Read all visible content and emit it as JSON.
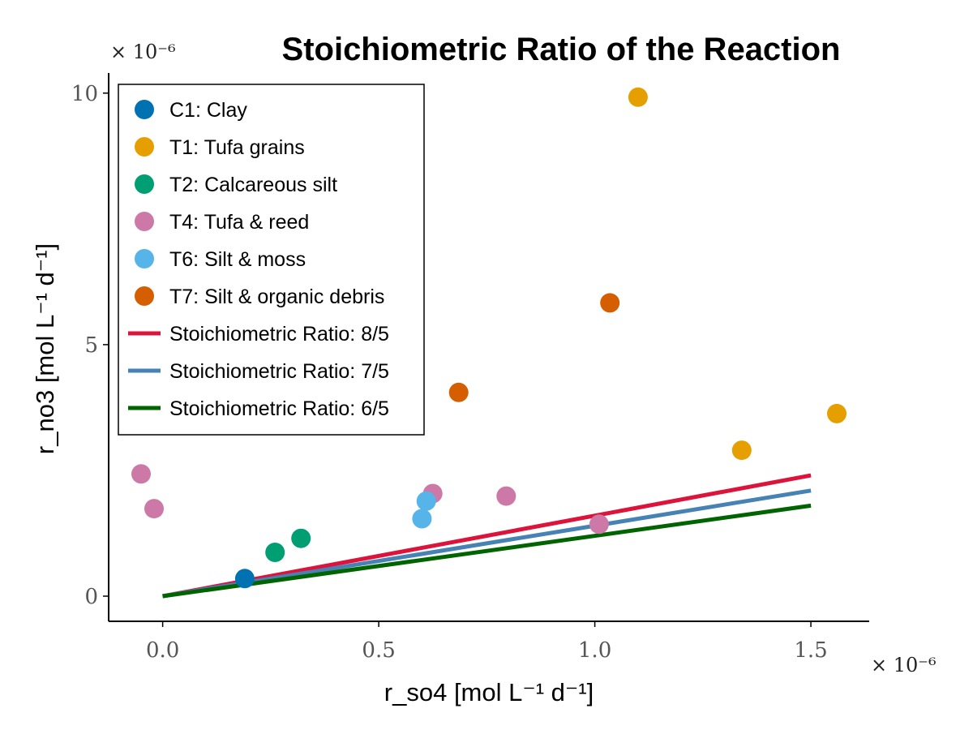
{
  "chart_data": {
    "type": "scatter",
    "title": "Stoichiometric Ratio of the Reaction",
    "xlabel": "r_so4 [mol L⁻¹ d⁻¹]",
    "ylabel": "r_no3 [mol L⁻¹ d⁻¹]",
    "x_scale_label": "× 10⁻⁶",
    "y_scale_label": "× 10⁻⁶",
    "xlim": [
      -0.125,
      1.635
    ],
    "ylim": [
      -0.5,
      10.4
    ],
    "x_ticks": [
      0.0,
      0.5,
      1.0,
      1.5
    ],
    "x_tick_labels": [
      "0.0",
      "0.5",
      "1.0",
      "1.5"
    ],
    "y_ticks": [
      0,
      5,
      10
    ],
    "y_tick_labels": [
      "0",
      "5",
      "10"
    ],
    "grid": false,
    "legend_position": "top-left",
    "series": [
      {
        "name": "C1: Clay",
        "kind": "scatter",
        "color": "#0072B2",
        "points": [
          [
            0.19,
            0.35
          ]
        ]
      },
      {
        "name": "T1: Tufa grains",
        "kind": "scatter",
        "color": "#E69F00",
        "points": [
          [
            1.1,
            9.92
          ],
          [
            1.34,
            2.9
          ],
          [
            1.56,
            3.63
          ]
        ]
      },
      {
        "name": "T2: Calcareous silt",
        "kind": "scatter",
        "color": "#009E73",
        "points": [
          [
            0.26,
            0.87
          ],
          [
            0.32,
            1.15
          ]
        ]
      },
      {
        "name": "T4: Tufa & reed",
        "kind": "scatter",
        "color": "#CC79A7",
        "points": [
          [
            -0.05,
            2.43
          ],
          [
            -0.02,
            1.74
          ],
          [
            0.625,
            2.04
          ],
          [
            0.795,
            1.99
          ],
          [
            1.01,
            1.43
          ]
        ]
      },
      {
        "name": "T6: Silt & moss",
        "kind": "scatter",
        "color": "#56B4E9",
        "points": [
          [
            0.6,
            1.54
          ],
          [
            0.61,
            1.89
          ]
        ]
      },
      {
        "name": "T7: Silt & organic debris",
        "kind": "scatter",
        "color": "#D55E00",
        "points": [
          [
            0.685,
            4.05
          ],
          [
            1.035,
            5.83
          ]
        ]
      },
      {
        "name": "Stoichiometric Ratio: 8/5",
        "kind": "line",
        "color": "#DC143C",
        "points": [
          [
            0.0,
            0.0
          ],
          [
            1.5,
            2.4
          ]
        ]
      },
      {
        "name": "Stoichiometric Ratio: 7/5",
        "kind": "line",
        "color": "#4682B4",
        "points": [
          [
            0.0,
            0.0
          ],
          [
            1.5,
            2.1
          ]
        ]
      },
      {
        "name": "Stoichiometric Ratio: 6/5",
        "kind": "line",
        "color": "#006400",
        "points": [
          [
            0.0,
            0.0
          ],
          [
            1.5,
            1.8
          ]
        ]
      }
    ]
  }
}
